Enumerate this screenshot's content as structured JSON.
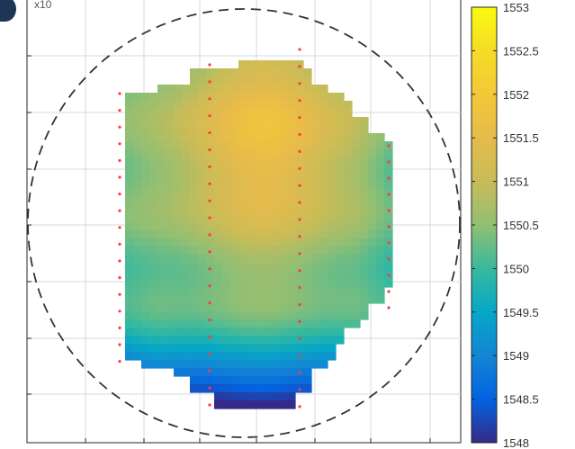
{
  "chart_data": {
    "type": "heatmap",
    "title": "",
    "xlabel": "",
    "ylabel": "",
    "grid": true,
    "colormap": "parula",
    "colorbar": {
      "min": 1548,
      "max": 1553,
      "ticks": [
        "1548",
        "1548.5",
        "1549",
        "1549.5",
        "1550",
        "1550.5",
        "1551",
        "1551.5",
        "1552",
        "1552.5",
        "1553"
      ]
    },
    "corner_label": "x10",
    "value_peak": 1551.7,
    "value_low": 1548.4,
    "wafer_outline": "dashed-circle"
  }
}
